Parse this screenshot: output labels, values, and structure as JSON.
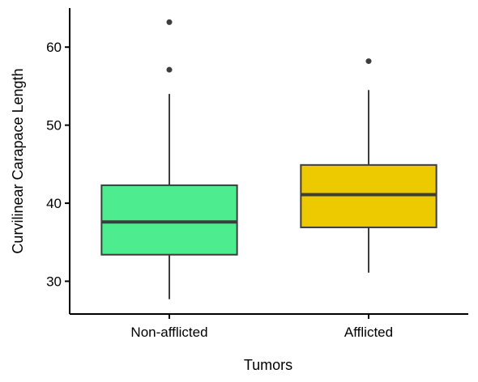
{
  "chart_data": {
    "type": "boxplot",
    "xlabel": "Tumors",
    "ylabel": "Curvilinear Carapace Length",
    "categories": [
      "Non-afflicted",
      "Afflicted"
    ],
    "colors": [
      "#4ded8f",
      "#edc900"
    ],
    "box_outline_color": "#3d3d3d",
    "yticks": [
      30,
      40,
      50,
      60
    ],
    "ylim": [
      25.8,
      65
    ],
    "grid": false,
    "legend": "none",
    "boxes": [
      {
        "category": "Non-afflicted",
        "whisker_low": 27.7,
        "q1": 33.4,
        "median": 37.6,
        "q3": 42.3,
        "whisker_high": 54.0,
        "outliers": [
          57.1,
          63.2
        ]
      },
      {
        "category": "Afflicted",
        "whisker_low": 31.1,
        "q1": 36.9,
        "median": 41.1,
        "q3": 44.9,
        "whisker_high": 54.5,
        "outliers": [
          58.2
        ]
      }
    ]
  }
}
